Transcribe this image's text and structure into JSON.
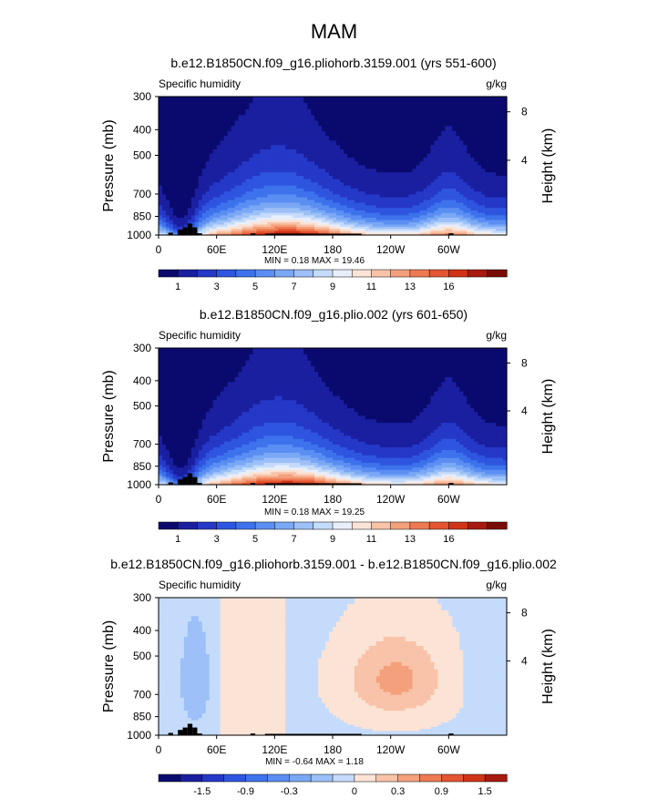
{
  "main_title": "MAM",
  "chart_data": [
    {
      "type": "heatmap",
      "title": "b.e12.B1850CN.f09_g16.pliohorb.3159.001 (yrs 551-600)",
      "left_label": "Specific humidity",
      "units": "g/kg",
      "ylabel": "Pressure (mb)",
      "ylabel_right": "Height (km)",
      "y_ticks": [
        "300",
        "400",
        "500",
        "700",
        "850",
        "1000"
      ],
      "y_ticks_right": [
        "8",
        "4"
      ],
      "x_ticks": [
        "0",
        "60E",
        "120E",
        "180",
        "120W",
        "60W"
      ],
      "min_max": "MIN =    0.18   MAX =   19.46",
      "colorbar_labels": [
        "1",
        "3",
        "5",
        "7",
        "9",
        "11",
        "13",
        "16"
      ],
      "colors": [
        "#0a0a6e",
        "#1a1fa0",
        "#2538c8",
        "#2e55e0",
        "#3d72ec",
        "#5b8ef2",
        "#7aa8f5",
        "#9cc0f7",
        "#c4dbfb",
        "#e8eefa",
        "#fbe3d6",
        "#f8c3a8",
        "#f4a07c",
        "#ee7a52",
        "#e45530",
        "#d03417",
        "#a81a0e",
        "#7a0c06"
      ],
      "max_value": 19.46
    },
    {
      "type": "heatmap",
      "title": "b.e12.B1850CN.f09_g16.plio.002 (yrs 601-650)",
      "left_label": "Specific humidity",
      "units": "g/kg",
      "ylabel": "Pressure (mb)",
      "ylabel_right": "Height (km)",
      "y_ticks": [
        "300",
        "400",
        "500",
        "700",
        "850",
        "1000"
      ],
      "y_ticks_right": [
        "8",
        "4"
      ],
      "x_ticks": [
        "0",
        "60E",
        "120E",
        "180",
        "120W",
        "60W"
      ],
      "min_max": "MIN =    0.18   MAX =   19.25",
      "colorbar_labels": [
        "1",
        "3",
        "5",
        "7",
        "9",
        "11",
        "13",
        "16"
      ],
      "colors": [
        "#0a0a6e",
        "#1a1fa0",
        "#2538c8",
        "#2e55e0",
        "#3d72ec",
        "#5b8ef2",
        "#7aa8f5",
        "#9cc0f7",
        "#c4dbfb",
        "#e8eefa",
        "#fbe3d6",
        "#f8c3a8",
        "#f4a07c",
        "#ee7a52",
        "#e45530",
        "#d03417",
        "#a81a0e",
        "#7a0c06"
      ],
      "max_value": 19.25
    },
    {
      "type": "heatmap",
      "title": "b.e12.B1850CN.f09_g16.pliohorb.3159.001 - b.e12.B1850CN.f09_g16.plio.002",
      "left_label": "Specific humidity",
      "units": "g/kg",
      "ylabel": "Pressure (mb)",
      "ylabel_right": "Height (km)",
      "y_ticks": [
        "300",
        "400",
        "500",
        "700",
        "850",
        "1000"
      ],
      "y_ticks_right": [
        "8",
        "4"
      ],
      "x_ticks": [
        "0",
        "60E",
        "120E",
        "180",
        "120W",
        "60W"
      ],
      "min_max": "MIN =   -0.64   MAX =    1.18",
      "colorbar_labels": [
        "-1.5",
        "-0.9",
        "-0.3",
        "0",
        "0.3",
        "0.9",
        "1.5"
      ],
      "colors": [
        "#0a0a6e",
        "#1a1fa0",
        "#2538c8",
        "#2e55e0",
        "#3d72ec",
        "#5b8ef2",
        "#7aa8f5",
        "#9cc0f7",
        "#c4dbfb",
        "#fbe3d6",
        "#f8c3a8",
        "#f4a07c",
        "#ee7a52",
        "#e45530",
        "#d03417",
        "#a81a0e"
      ]
    }
  ]
}
